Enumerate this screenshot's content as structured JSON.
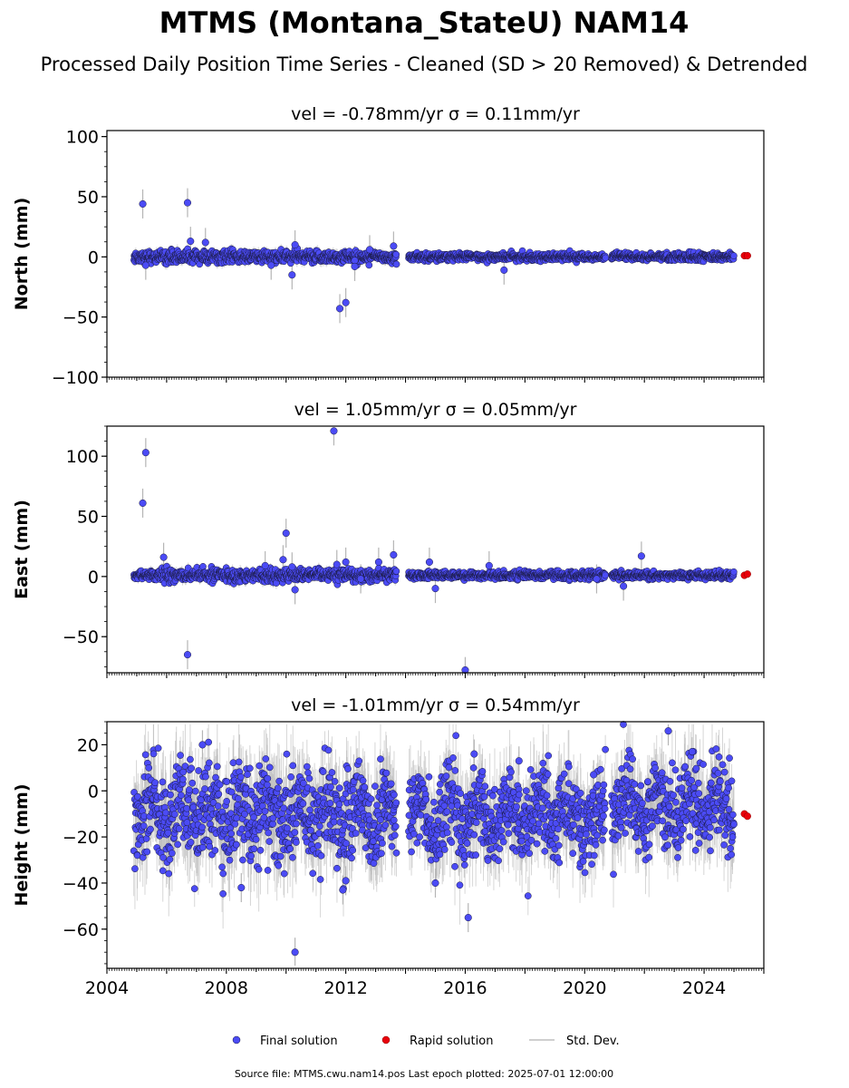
{
  "title": "MTMS (Montana_StateU) NAM14",
  "subtitle": "Processed Daily Position Time Series - Cleaned (SD > 20 Removed) & Detrended",
  "source_line": "Source file: MTMS.cwu.nam14.pos  Last epoch plotted: 2025-07-01 12:00:00",
  "legend": {
    "final": "Final solution",
    "rapid": "Rapid solution",
    "std": "Std. Dev."
  },
  "colors": {
    "final": "#4B4BF5",
    "final_edge": "#1a1a40",
    "rapid": "#E8000B",
    "rapid_edge": "#8a0000",
    "stddev": "#b5b5b5"
  },
  "chart_data": [
    {
      "type": "scatter",
      "title": "vel = -0.78mm/yr   σ = 0.11mm/yr",
      "ylabel": "North (mm)",
      "xlim": [
        2004.0,
        2026.0
      ],
      "ylim": [
        -100,
        105
      ],
      "yticks": [
        "100",
        "50",
        "0",
        "−50",
        "−100"
      ],
      "ytick_values": [
        100,
        50,
        0,
        -50,
        -100
      ],
      "series": [
        {
          "name": "Final solution",
          "segments": [
            {
              "x": [
                2004.9,
                2013.7
              ],
              "center": 0,
              "spread": 2.5
            },
            {
              "x": [
                2014.1,
                2020.7
              ],
              "center": 0,
              "spread": 1.5
            },
            {
              "x": [
                2020.9,
                2025.0
              ],
              "center": 0,
              "spread": 1.5
            }
          ],
          "outliers": [
            {
              "x": 2005.2,
              "y": 44
            },
            {
              "x": 2006.7,
              "y": 45
            },
            {
              "x": 2006.8,
              "y": 13
            },
            {
              "x": 2007.3,
              "y": 12
            },
            {
              "x": 2010.3,
              "y": 10
            },
            {
              "x": 2010.2,
              "y": -15
            },
            {
              "x": 2011.8,
              "y": -43
            },
            {
              "x": 2012.0,
              "y": -38
            },
            {
              "x": 2012.3,
              "y": -3
            },
            {
              "x": 2012.3,
              "y": -8
            },
            {
              "x": 2012.8,
              "y": 6
            },
            {
              "x": 2013.6,
              "y": 9
            },
            {
              "x": 2017.3,
              "y": -11
            },
            {
              "x": 2005.3,
              "y": -7
            },
            {
              "x": 2009.5,
              "y": -7
            }
          ]
        },
        {
          "name": "Rapid solution",
          "x": [
            2025.35,
            2025.45
          ],
          "y": [
            1,
            1
          ]
        }
      ]
    },
    {
      "type": "scatter",
      "title": "vel = 1.05mm/yr   σ = 0.05mm/yr",
      "ylabel": "East (mm)",
      "xlim": [
        2004.0,
        2026.0
      ],
      "ylim": [
        -80,
        125
      ],
      "yticks": [
        "100",
        "50",
        "0",
        "−50"
      ],
      "ytick_values": [
        100,
        50,
        0,
        -50
      ],
      "series": [
        {
          "name": "Final solution",
          "segments": [
            {
              "x": [
                2004.9,
                2013.7
              ],
              "center": 1,
              "spread": 2.5
            },
            {
              "x": [
                2014.1,
                2020.7
              ],
              "center": 1,
              "spread": 1.5
            },
            {
              "x": [
                2020.9,
                2025.0
              ],
              "center": 1,
              "spread": 1.5
            }
          ],
          "outliers": [
            {
              "x": 2005.2,
              "y": 61
            },
            {
              "x": 2005.3,
              "y": 103
            },
            {
              "x": 2006.7,
              "y": -65
            },
            {
              "x": 2005.9,
              "y": 16
            },
            {
              "x": 2009.3,
              "y": 9
            },
            {
              "x": 2009.9,
              "y": 14
            },
            {
              "x": 2010.0,
              "y": 36
            },
            {
              "x": 2010.2,
              "y": 8
            },
            {
              "x": 2010.3,
              "y": -11
            },
            {
              "x": 2011.6,
              "y": 121
            },
            {
              "x": 2011.7,
              "y": 10
            },
            {
              "x": 2012.0,
              "y": 12
            },
            {
              "x": 2012.5,
              "y": -2
            },
            {
              "x": 2013.1,
              "y": 12
            },
            {
              "x": 2013.6,
              "y": 18
            },
            {
              "x": 2014.8,
              "y": 12
            },
            {
              "x": 2015.0,
              "y": -10
            },
            {
              "x": 2016.0,
              "y": -79
            },
            {
              "x": 2016.8,
              "y": 9
            },
            {
              "x": 2020.4,
              "y": -2
            },
            {
              "x": 2021.3,
              "y": -8
            },
            {
              "x": 2021.9,
              "y": 17
            }
          ]
        },
        {
          "name": "Rapid solution",
          "x": [
            2025.35,
            2025.45
          ],
          "y": [
            1,
            2
          ]
        }
      ]
    },
    {
      "type": "scatter",
      "title": "vel = -1.01mm/yr   σ = 0.54mm/yr",
      "ylabel": "Height (mm)",
      "xlabel": "",
      "xlim": [
        2004.0,
        2026.0
      ],
      "ylim": [
        -77,
        30
      ],
      "yticks": [
        "20",
        "0",
        "−20",
        "−40",
        "−60"
      ],
      "ytick_values": [
        20,
        0,
        -20,
        -40,
        -60
      ],
      "xticks": [
        "2004",
        "2008",
        "2012",
        "2016",
        "2020",
        "2024"
      ],
      "xtick_values": [
        2004,
        2008,
        2012,
        2016,
        2020,
        2024
      ],
      "series": [
        {
          "name": "Final solution",
          "segments": [
            {
              "x": [
                2004.9,
                2013.7
              ],
              "center": -10,
              "spread": 10,
              "seasonal": 6
            },
            {
              "x": [
                2014.1,
                2020.7
              ],
              "center": -11,
              "spread": 9,
              "seasonal": 7
            },
            {
              "x": [
                2020.9,
                2025.0
              ],
              "center": -6,
              "spread": 9,
              "seasonal": 7
            }
          ],
          "outliers": [
            {
              "x": 2007.2,
              "y": 20
            },
            {
              "x": 2008.5,
              "y": -42
            },
            {
              "x": 2010.3,
              "y": -70
            },
            {
              "x": 2011.9,
              "y": -43
            },
            {
              "x": 2012.0,
              "y": -39
            },
            {
              "x": 2015.0,
              "y": -40
            },
            {
              "x": 2016.1,
              "y": -55
            },
            {
              "x": 2016.3,
              "y": 16
            },
            {
              "x": 2017.8,
              "y": 13
            },
            {
              "x": 2022.8,
              "y": 26
            },
            {
              "x": 2023.6,
              "y": 17
            },
            {
              "x": 2020.3,
              "y": 7
            }
          ]
        },
        {
          "name": "Rapid solution",
          "x": [
            2025.35,
            2025.45
          ],
          "y": [
            -10,
            -11
          ]
        }
      ]
    }
  ]
}
